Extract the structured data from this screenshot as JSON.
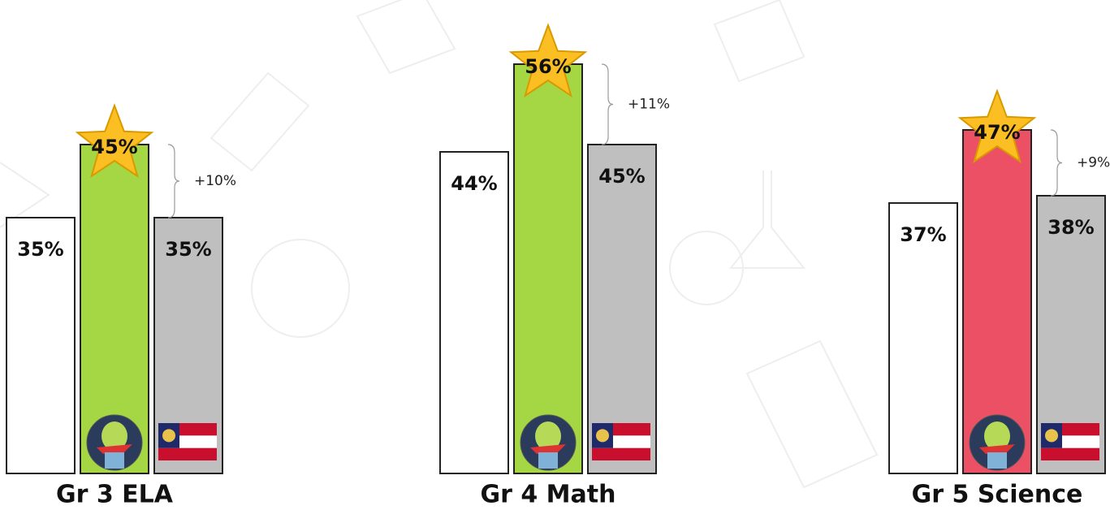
{
  "chart_data": {
    "type": "bar",
    "categories": [
      "Gr 3 ELA",
      "Gr 4 Math",
      "Gr 5 Science"
    ],
    "series": [
      {
        "color": "#ffffff",
        "values": [
          35,
          44,
          37
        ],
        "value_labels": [
          "35%",
          "44%",
          "37%"
        ]
      },
      {
        "color": "#a5d644",
        "colors": [
          "#a5d644",
          "#a5d644",
          "#ec5064"
        ],
        "values": [
          45,
          56,
          47
        ],
        "value_labels": [
          "45%",
          "56%",
          "47%"
        ]
      },
      {
        "color": "#bfbfbf",
        "values": [
          35,
          45,
          38
        ],
        "value_labels": [
          "35%",
          "45%",
          "38%"
        ]
      }
    ],
    "annotations": [
      "+10%",
      "+11%",
      "+9%"
    ],
    "ylim": [
      0,
      60
    ]
  }
}
